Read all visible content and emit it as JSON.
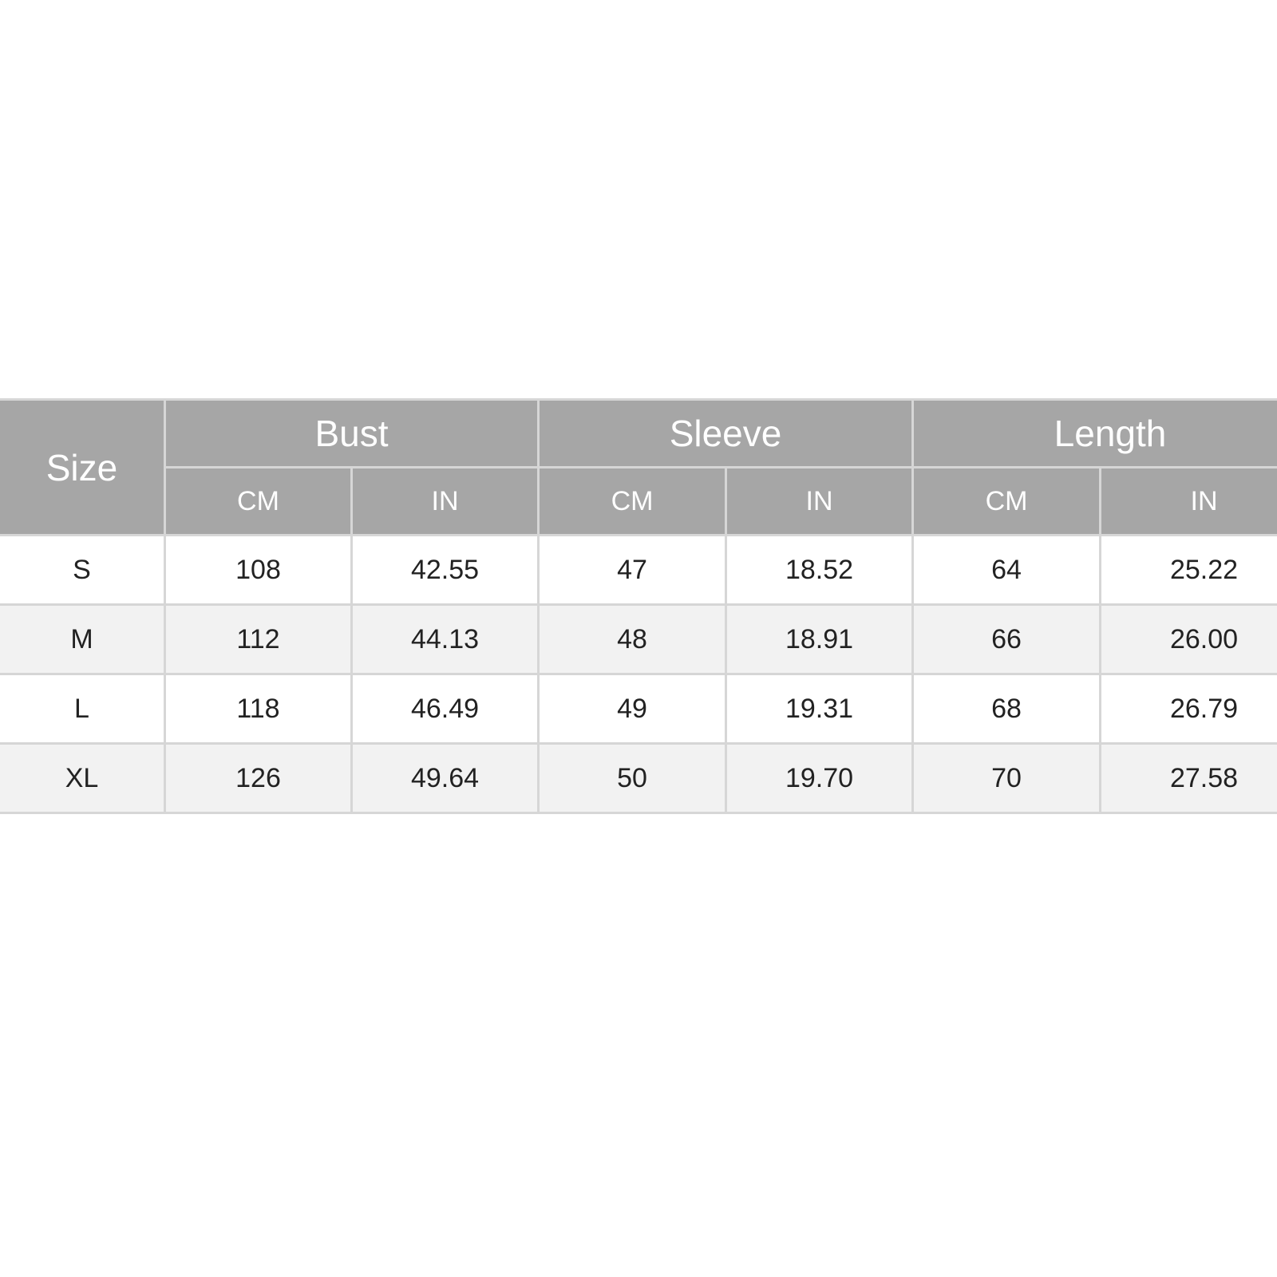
{
  "table": {
    "size_header": "Size",
    "groups": [
      "Bust",
      "Sleeve",
      "Length"
    ],
    "units": [
      "CM",
      "IN",
      "CM",
      "IN",
      "CM",
      "IN"
    ],
    "rows": [
      [
        "S",
        "108",
        "42.55",
        "47",
        "18.52",
        "64",
        "25.22"
      ],
      [
        "M",
        "112",
        "44.13",
        "48",
        "18.91",
        "66",
        "26.00"
      ],
      [
        "L",
        "118",
        "46.49",
        "49",
        "19.31",
        "68",
        "26.79"
      ],
      [
        "XL",
        "126",
        "49.64",
        "50",
        "19.70",
        "70",
        "27.58"
      ]
    ],
    "colors": {
      "header_bg": "#a6a6a6",
      "alt_row_bg": "#f2f2f2",
      "border": "#d6d6d6"
    }
  }
}
